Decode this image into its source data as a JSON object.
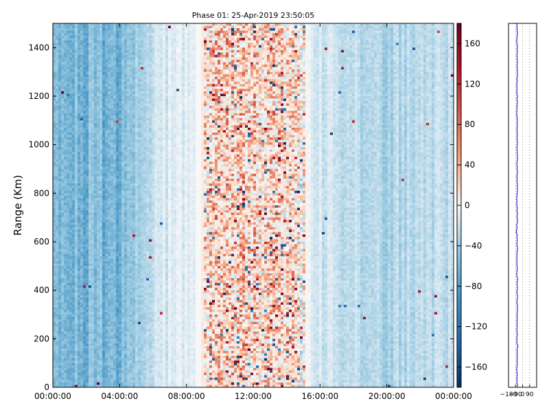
{
  "chart_data": [
    {
      "type": "heatmap",
      "title": "Phase 01: 25-Apr-2019 23:50:05",
      "xlabel": "",
      "ylabel": "Range (Km)",
      "x_ticks": [
        "00:00:00",
        "04:00:00",
        "08:00:00",
        "12:00:00",
        "16:00:00",
        "20:00:00",
        "00:00:00"
      ],
      "x_range_hours": [
        0,
        24
      ],
      "y_ticks": [
        0,
        200,
        400,
        600,
        800,
        1000,
        1200,
        1400
      ],
      "ylim": [
        0,
        1500
      ],
      "colorbar": {
        "ticks": [
          160,
          120,
          80,
          40,
          0,
          -40,
          -80,
          -120,
          -160
        ],
        "range": [
          -180,
          180
        ],
        "colormap": "RdBu_r",
        "colors": {
          "low": "#053061",
          "mid": "#f7f7f7",
          "high": "#67001f"
        }
      },
      "phase_by_hour": [
        {
          "hour": 0,
          "phase": -70
        },
        {
          "hour": 2,
          "phase": -80
        },
        {
          "hour": 4,
          "phase": -85
        },
        {
          "hour": 5,
          "phase": -60
        },
        {
          "hour": 7,
          "phase": -25
        },
        {
          "hour": 8.5,
          "phase": -15
        },
        {
          "hour": 9.5,
          "phase": 45
        },
        {
          "hour": 12,
          "phase": 35
        },
        {
          "hour": 14.5,
          "phase": 25
        },
        {
          "hour": 16,
          "phase": -35
        },
        {
          "hour": 20,
          "phase": -55
        },
        {
          "hour": 24,
          "phase": -45
        }
      ],
      "grid": false
    },
    {
      "type": "line",
      "x_ticks": [
        -180,
        -90,
        0,
        90
      ],
      "xlim": [
        -180,
        180
      ],
      "ylim": [
        0,
        1500
      ],
      "series_color": "#0000cc",
      "mean_phase": -70,
      "grid": true,
      "grid_style": "dotted"
    }
  ]
}
